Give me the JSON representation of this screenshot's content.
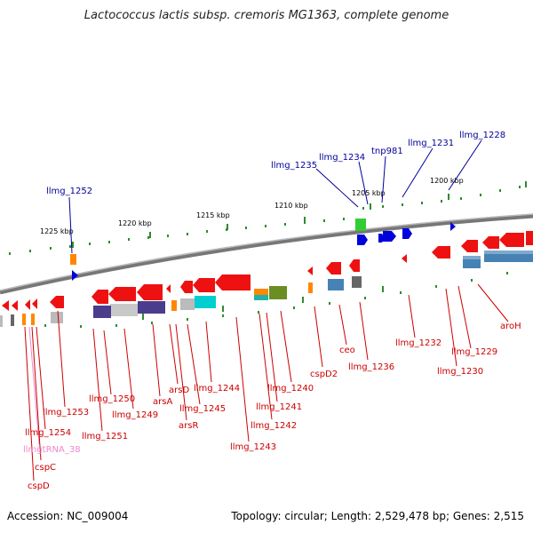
{
  "title": "Lactococcus lactis subsp. cremoris MG1363, complete genome",
  "accession": "Accession: NC_009004",
  "topology": "Topology: circular; Length: 2,529,478 bp; Genes: 2,515",
  "colors": {
    "forward_gene": "#0000dd",
    "reverse_gene": "#dd0000",
    "trna": "#ee88cc",
    "backbone": "#888888",
    "ticks": "#2e8b2e"
  },
  "scale_labels": [
    "1225 kbp",
    "1220 kbp",
    "1215 kbp",
    "1210 kbp",
    "1205 kbp",
    "1200 kbp"
  ],
  "top_gene_labels": [
    "llmg_1252",
    "llmg_1235",
    "llmg_1234",
    "tnp981",
    "llmg_1231",
    "llmg_1228"
  ],
  "bottom_gene_labels": [
    "llmg_1253",
    "llmg_1254",
    "llmgtRNA_38",
    "cspC",
    "cspD",
    "llmg_1251",
    "llmg_1250",
    "llmg_1249",
    "arsA",
    "arsD",
    "arsR",
    "llmg_1245",
    "llmg_1244",
    "llmg_1243",
    "llmg_1242",
    "llmg_1241",
    "llmg_1240",
    "cspD2",
    "ceo",
    "llmg_1236",
    "llmg_1232",
    "llmg_1230",
    "llmg_1229",
    "aroH"
  ]
}
